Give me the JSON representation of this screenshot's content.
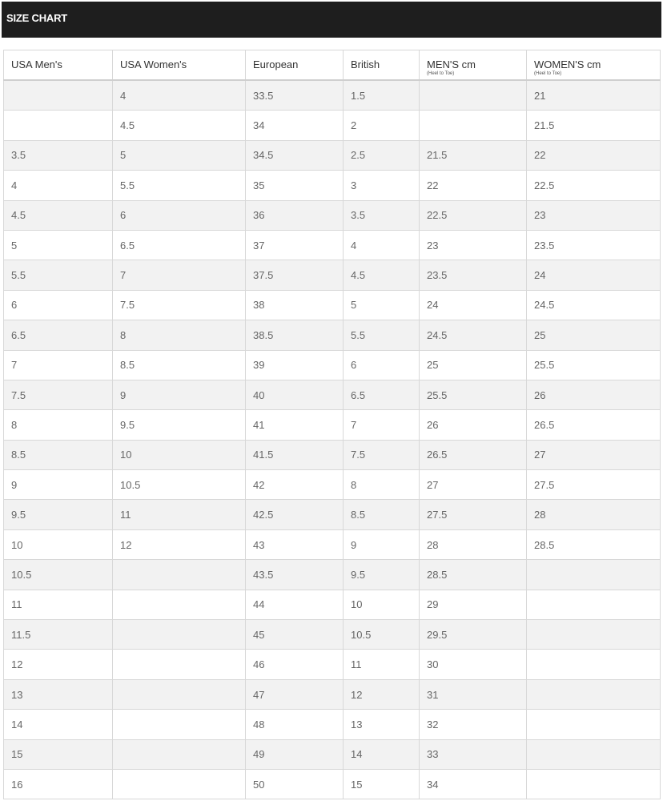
{
  "header": {
    "title": "SIZE CHART"
  },
  "table": {
    "columns": [
      {
        "label": "USA Men's",
        "sub": ""
      },
      {
        "label": "USA Women's",
        "sub": ""
      },
      {
        "label": "European",
        "sub": ""
      },
      {
        "label": "British",
        "sub": ""
      },
      {
        "label": "MEN'S cm",
        "sub": "(Heel to Toe)"
      },
      {
        "label": "WOMEN'S cm",
        "sub": "(Heel to Toe)"
      }
    ],
    "rows": [
      [
        "",
        "4",
        "33.5",
        "1.5",
        "",
        "21"
      ],
      [
        "",
        "4.5",
        "34",
        "2",
        "",
        "21.5"
      ],
      [
        "3.5",
        "5",
        "34.5",
        "2.5",
        "21.5",
        "22"
      ],
      [
        "4",
        "5.5",
        "35",
        "3",
        "22",
        "22.5"
      ],
      [
        "4.5",
        "6",
        "36",
        "3.5",
        "22.5",
        "23"
      ],
      [
        "5",
        "6.5",
        "37",
        "4",
        "23",
        "23.5"
      ],
      [
        "5.5",
        "7",
        "37.5",
        "4.5",
        "23.5",
        "24"
      ],
      [
        "6",
        "7.5",
        "38",
        "5",
        "24",
        "24.5"
      ],
      [
        "6.5",
        "8",
        "38.5",
        "5.5",
        "24.5",
        "25"
      ],
      [
        "7",
        "8.5",
        "39",
        "6",
        "25",
        "25.5"
      ],
      [
        "7.5",
        "9",
        "40",
        "6.5",
        "25.5",
        "26"
      ],
      [
        "8",
        "9.5",
        "41",
        "7",
        "26",
        "26.5"
      ],
      [
        "8.5",
        "10",
        "41.5",
        "7.5",
        "26.5",
        "27"
      ],
      [
        "9",
        "10.5",
        "42",
        "8",
        "27",
        "27.5"
      ],
      [
        "9.5",
        "11",
        "42.5",
        "8.5",
        "27.5",
        "28"
      ],
      [
        "10",
        "12",
        "43",
        "9",
        "28",
        "28.5"
      ],
      [
        "10.5",
        "",
        "43.5",
        "9.5",
        "28.5",
        ""
      ],
      [
        "11",
        "",
        "44",
        "10",
        "29",
        ""
      ],
      [
        "11.5",
        "",
        "45",
        "10.5",
        "29.5",
        ""
      ],
      [
        "12",
        "",
        "46",
        "11",
        "30",
        ""
      ],
      [
        "13",
        "",
        "47",
        "12",
        "31",
        ""
      ],
      [
        "14",
        "",
        "48",
        "13",
        "32",
        ""
      ],
      [
        "15",
        "",
        "49",
        "14",
        "33",
        ""
      ],
      [
        "16",
        "",
        "50",
        "15",
        "34",
        ""
      ]
    ]
  }
}
